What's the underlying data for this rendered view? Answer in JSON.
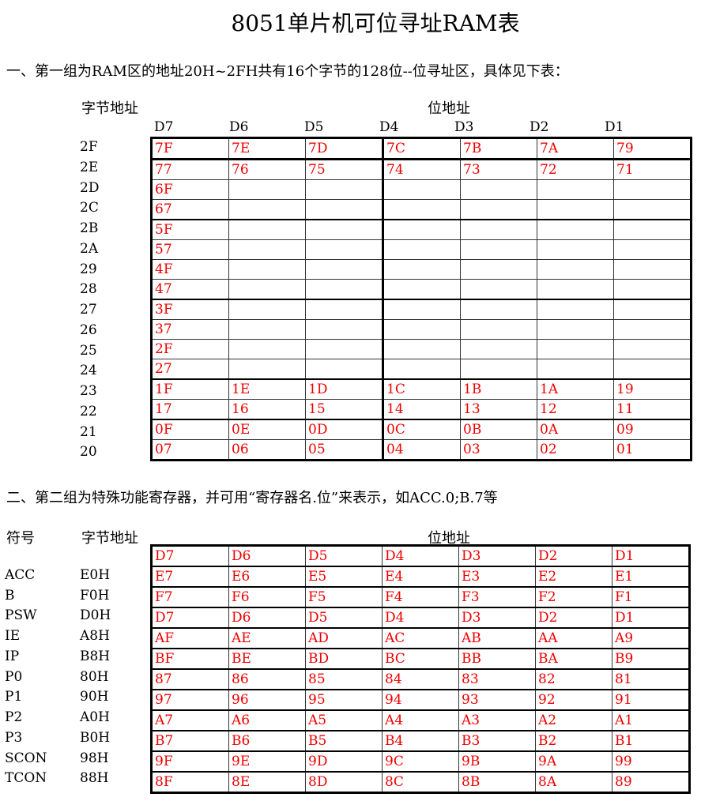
{
  "title": "8051单片机可位寻址RAM表",
  "section1": "一、第一组为RAM区的地址20H~2FH共有16个字节的128位--位寻址区，具体见下表：",
  "section2": "二、第二组为特殊功能寄存器，并可用“寄存器名.位”来表示，如ACC.0;B.7等",
  "byte_addr_label": "字节地址",
  "bit_addr_label": "位地址",
  "symbol_label": "符号",
  "columns": [
    "D7",
    "D6",
    "D5",
    "D4",
    "D3",
    "D2",
    "D1"
  ],
  "table1": [
    {
      "addr": "2F",
      "bits": [
        "7F",
        "7E",
        "7D",
        "7C",
        "7B",
        "7A",
        "79"
      ]
    },
    {
      "addr": "2E",
      "bits": [
        "77",
        "76",
        "75",
        "74",
        "73",
        "72",
        "71"
      ]
    },
    {
      "addr": "2D",
      "bits": [
        "6F",
        "",
        "",
        "",
        "",
        "",
        ""
      ]
    },
    {
      "addr": "2C",
      "bits": [
        "67",
        "",
        "",
        "",
        "",
        "",
        ""
      ]
    },
    {
      "addr": "2B",
      "bits": [
        "5F",
        "",
        "",
        "",
        "",
        "",
        ""
      ]
    },
    {
      "addr": "2A",
      "bits": [
        "57",
        "",
        "",
        "",
        "",
        "",
        ""
      ]
    },
    {
      "addr": "29",
      "bits": [
        "4F",
        "",
        "",
        "",
        "",
        "",
        ""
      ]
    },
    {
      "addr": "28",
      "bits": [
        "47",
        "",
        "",
        "",
        "",
        "",
        ""
      ]
    },
    {
      "addr": "27",
      "bits": [
        "3F",
        "",
        "",
        "",
        "",
        "",
        ""
      ]
    },
    {
      "addr": "26",
      "bits": [
        "37",
        "",
        "",
        "",
        "",
        "",
        ""
      ]
    },
    {
      "addr": "25",
      "bits": [
        "2F",
        "",
        "",
        "",
        "",
        "",
        ""
      ]
    },
    {
      "addr": "24",
      "bits": [
        "27",
        "",
        "",
        "",
        "",
        "",
        ""
      ]
    },
    {
      "addr": "23",
      "bits": [
        "1F",
        "1E",
        "1D",
        "1C",
        "1B",
        "1A",
        "19"
      ]
    },
    {
      "addr": "22",
      "bits": [
        "17",
        "16",
        "15",
        "14",
        "13",
        "12",
        "11"
      ]
    },
    {
      "addr": "21",
      "bits": [
        "0F",
        "0E",
        "0D",
        "0C",
        "0B",
        "0A",
        "09"
      ]
    },
    {
      "addr": "20",
      "bits": [
        "07",
        "06",
        "05",
        "04",
        "03",
        "02",
        "01"
      ]
    }
  ],
  "table2": [
    {
      "sym": "",
      "addr": "",
      "bits": [
        "D7",
        "D6",
        "D5",
        "D4",
        "D3",
        "D2",
        "D1"
      ]
    },
    {
      "sym": "ACC",
      "addr": "E0H",
      "bits": [
        "E7",
        "E6",
        "E5",
        "E4",
        "E3",
        "E2",
        "E1"
      ]
    },
    {
      "sym": "B",
      "addr": "F0H",
      "bits": [
        "F7",
        "F6",
        "F5",
        "F4",
        "F3",
        "F2",
        "F1"
      ]
    },
    {
      "sym": "PSW",
      "addr": "D0H",
      "bits": [
        "D7",
        "D6",
        "D5",
        "D4",
        "D3",
        "D2",
        "D1"
      ]
    },
    {
      "sym": "IE",
      "addr": "A8H",
      "bits": [
        "AF",
        "AE",
        "AD",
        "AC",
        "AB",
        "AA",
        "A9"
      ]
    },
    {
      "sym": "IP",
      "addr": "B8H",
      "bits": [
        "BF",
        "BE",
        "BD",
        "BC",
        "BB",
        "BA",
        "B9"
      ]
    },
    {
      "sym": "P0",
      "addr": "80H",
      "bits": [
        "87",
        "86",
        "85",
        "84",
        "83",
        "82",
        "81"
      ]
    },
    {
      "sym": "P1",
      "addr": "90H",
      "bits": [
        "97",
        "96",
        "95",
        "94",
        "93",
        "92",
        "91"
      ]
    },
    {
      "sym": "P2",
      "addr": "A0H",
      "bits": [
        "A7",
        "A6",
        "A5",
        "A4",
        "A3",
        "A2",
        "A1"
      ]
    },
    {
      "sym": "P3",
      "addr": "B0H",
      "bits": [
        "B7",
        "B6",
        "B5",
        "B4",
        "B3",
        "B2",
        "B1"
      ]
    },
    {
      "sym": "SCON",
      "addr": "98H",
      "bits": [
        "9F",
        "9E",
        "9D",
        "9C",
        "9B",
        "9A",
        "99"
      ]
    },
    {
      "sym": "TCON",
      "addr": "88H",
      "bits": [
        "8F",
        "8E",
        "8D",
        "8C",
        "8B",
        "8A",
        "89"
      ]
    }
  ]
}
